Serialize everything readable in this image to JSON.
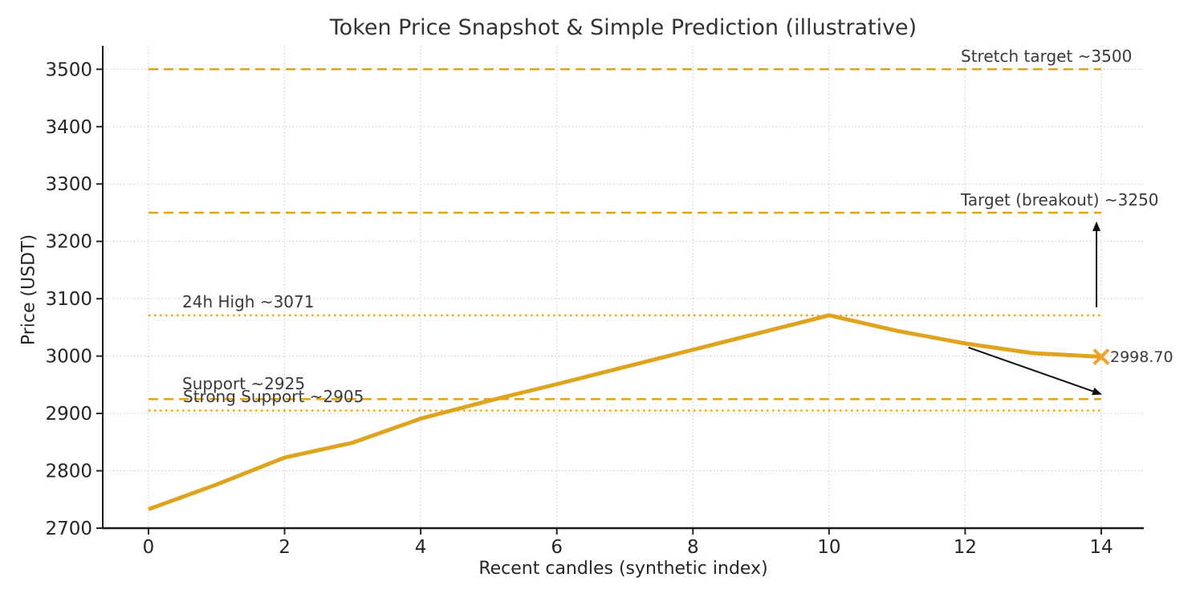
{
  "chart_data": {
    "type": "line",
    "title": "Token Price Snapshot & Simple Prediction (illustrative)",
    "xlabel": "Recent candles (synthetic index)",
    "ylabel": "Price (USDT)",
    "xlim": [
      -0.672,
      14.625
    ],
    "ylim": [
      2700,
      3541
    ],
    "xticks": [
      0,
      2,
      4,
      6,
      8,
      10,
      12,
      14
    ],
    "yticks": [
      2700,
      2800,
      2900,
      3000,
      3100,
      3200,
      3300,
      3400,
      3500
    ],
    "grid": true,
    "grid_style": "dotted",
    "series": [
      {
        "name": "price",
        "color": "#DFA41E",
        "linewidth": 5,
        "x": [
          0,
          1,
          2,
          3,
          4,
          5,
          6,
          7,
          8,
          9,
          10,
          11,
          12,
          13,
          14
        ],
        "values": [
          2733,
          2776,
          2823,
          2849,
          2891,
          2922,
          2951,
          2981,
          3011,
          3041,
          3071,
          3044,
          3022,
          3005,
          2998.7
        ]
      }
    ],
    "end_marker": {
      "x": 14,
      "y": 2998.7,
      "symbol": "x",
      "color": "#F0A325",
      "label": "2998.70"
    },
    "reference_lines": [
      {
        "label": "Stretch target ~3500",
        "y": 3500,
        "style": "dashed",
        "color": "#DFA41E",
        "xmin": 0,
        "xmax": 14
      },
      {
        "label": "Target (breakout) ~3250",
        "y": 3250,
        "style": "dashed",
        "color": "#DFA41E",
        "xmin": 0,
        "xmax": 14
      },
      {
        "label": "24h High ~3071",
        "y": 3071,
        "style": "dotted",
        "color": "#FFA500",
        "xmin": 0,
        "xmax": 14
      },
      {
        "label": "Support ~2925",
        "y": 2925,
        "style": "dashed",
        "color": "#DFA41E",
        "xmin": 0,
        "xmax": 14
      },
      {
        "label": "Strong Support ~2905",
        "y": 2905,
        "style": "dotted",
        "color": "#FFA500",
        "xmin": 0,
        "xmax": 14
      }
    ],
    "arrows": [
      {
        "from": {
          "x": 13.93,
          "y": 3085
        },
        "to": {
          "x": 13.93,
          "y": 3232
        },
        "color": "#111111"
      },
      {
        "from": {
          "x": 12.05,
          "y": 3015
        },
        "to": {
          "x": 13.99,
          "y": 2934
        },
        "color": "#111111"
      }
    ],
    "colors": {
      "spine": "#1b1b1b",
      "grid": "#c9c9c9",
      "tick_label": "#262626",
      "annotation_text": "#3a3a3a",
      "title_text": "#333333"
    }
  }
}
